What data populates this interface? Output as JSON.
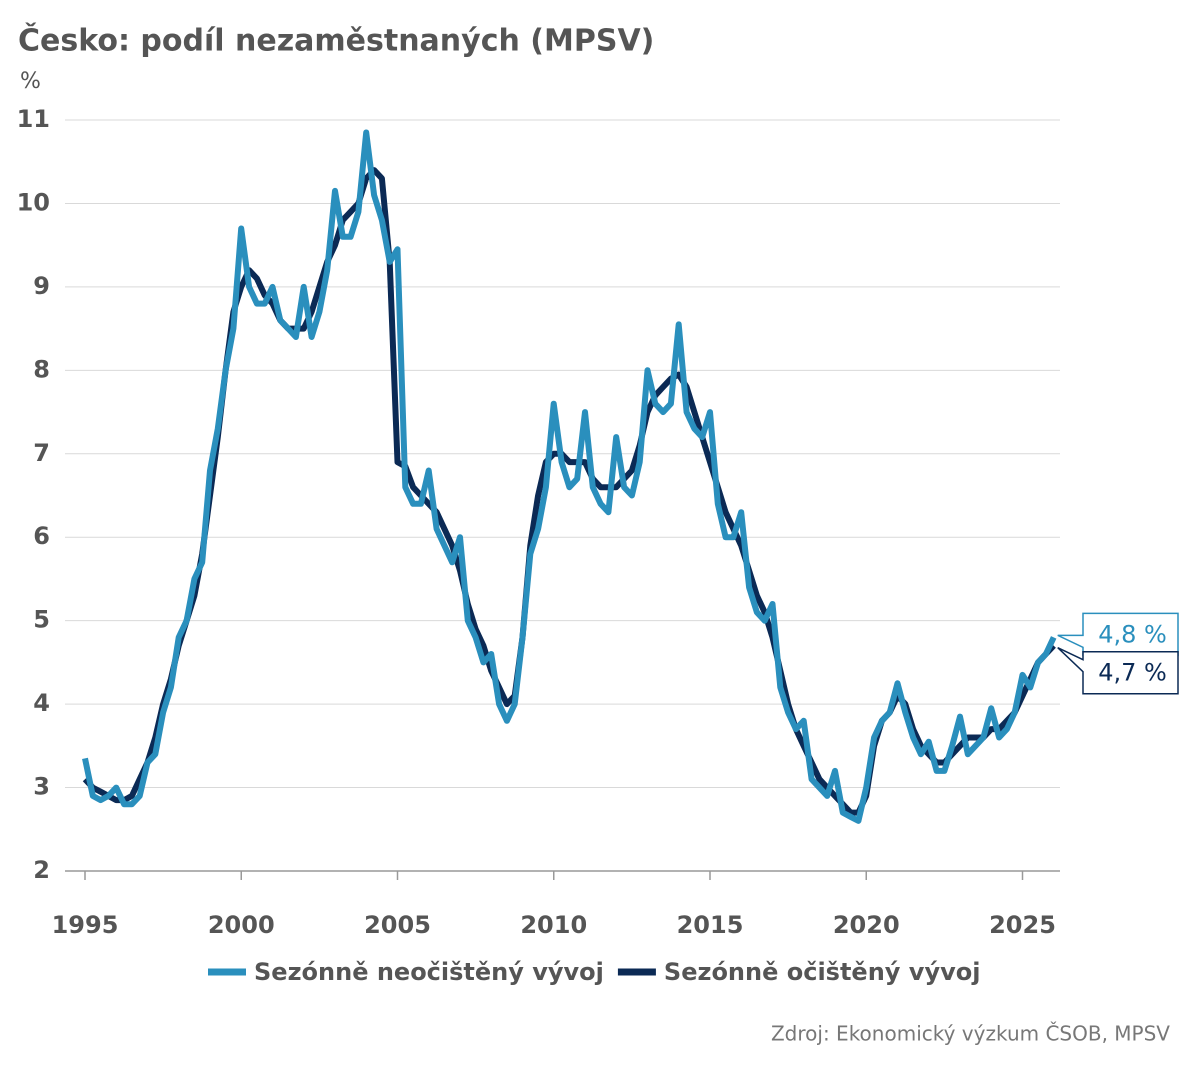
{
  "chart_data": {
    "type": "line",
    "title": "Česko: podíl nezaměstnaných (MPSV)",
    "y_label": "%",
    "source": "Zdroj: Ekonomický výzkum ČSOB, MPSV",
    "x": [
      1995,
      1995.25,
      1995.5,
      1995.75,
      1996,
      1996.25,
      1996.5,
      1996.75,
      1997,
      1997.25,
      1997.5,
      1997.75,
      1998,
      1998.25,
      1998.5,
      1998.75,
      1999,
      1999.25,
      1999.5,
      1999.75,
      2000,
      2000.25,
      2000.5,
      2000.75,
      2001,
      2001.25,
      2001.5,
      2001.75,
      2002,
      2002.25,
      2002.5,
      2002.75,
      2003,
      2003.25,
      2003.5,
      2003.75,
      2004,
      2004.25,
      2004.5,
      2004.75,
      2005,
      2005.25,
      2005.5,
      2005.75,
      2006,
      2006.25,
      2006.5,
      2006.75,
      2007,
      2007.25,
      2007.5,
      2007.75,
      2008,
      2008.25,
      2008.5,
      2008.75,
      2009,
      2009.25,
      2009.5,
      2009.75,
      2010,
      2010.25,
      2010.5,
      2010.75,
      2011,
      2011.25,
      2011.5,
      2011.75,
      2012,
      2012.25,
      2012.5,
      2012.75,
      2013,
      2013.25,
      2013.5,
      2013.75,
      2014,
      2014.25,
      2014.5,
      2014.75,
      2015,
      2015.25,
      2015.5,
      2015.75,
      2016,
      2016.25,
      2016.5,
      2016.75,
      2017,
      2017.25,
      2017.5,
      2017.75,
      2018,
      2018.25,
      2018.5,
      2018.75,
      2019,
      2019.25,
      2019.5,
      2019.75,
      2020,
      2020.25,
      2020.5,
      2020.75,
      2021,
      2021.25,
      2021.5,
      2021.75,
      2022,
      2022.25,
      2022.5,
      2022.75,
      2023,
      2023.25,
      2023.5,
      2023.75,
      2024,
      2024.25,
      2024.5,
      2024.75,
      2025,
      2025.25,
      2025.5,
      2025.75,
      2026
    ],
    "series": [
      {
        "name": "Sezónně neočištěný vývoj",
        "color": "#2a8fbd",
        "values": [
          3.35,
          2.9,
          2.85,
          2.9,
          3.0,
          2.8,
          2.8,
          2.9,
          3.3,
          3.4,
          3.9,
          4.2,
          4.8,
          5.0,
          5.5,
          5.7,
          6.8,
          7.3,
          8.0,
          8.5,
          9.7,
          9.0,
          8.8,
          8.8,
          9.0,
          8.6,
          8.5,
          8.4,
          9.0,
          8.4,
          8.7,
          9.2,
          10.15,
          9.6,
          9.6,
          9.9,
          10.85,
          10.1,
          9.8,
          9.3,
          9.45,
          6.6,
          6.4,
          6.4,
          6.8,
          6.1,
          5.9,
          5.7,
          6.0,
          5.0,
          4.8,
          4.5,
          4.6,
          4.0,
          3.8,
          4.0,
          4.8,
          5.8,
          6.1,
          6.6,
          7.6,
          6.9,
          6.6,
          6.7,
          7.5,
          6.6,
          6.4,
          6.3,
          7.2,
          6.6,
          6.5,
          6.9,
          8.0,
          7.6,
          7.5,
          7.6,
          8.55,
          7.5,
          7.3,
          7.2,
          7.5,
          6.4,
          6.0,
          6.0,
          6.3,
          5.4,
          5.1,
          5.0,
          5.2,
          4.2,
          3.9,
          3.7,
          3.8,
          3.1,
          3.0,
          2.9,
          3.2,
          2.7,
          2.65,
          2.6,
          3.0,
          3.6,
          3.8,
          3.9,
          4.25,
          3.9,
          3.6,
          3.4,
          3.55,
          3.2,
          3.2,
          3.5,
          3.85,
          3.4,
          3.5,
          3.6,
          3.95,
          3.6,
          3.7,
          3.9,
          4.35,
          4.2,
          4.5,
          4.6,
          4.8
        ]
      },
      {
        "name": "Sezónně očištěný vývoj",
        "color": "#0b2a55",
        "values": [
          3.1,
          3.0,
          2.95,
          2.9,
          2.85,
          2.85,
          2.9,
          3.1,
          3.3,
          3.6,
          4.0,
          4.3,
          4.7,
          5.0,
          5.3,
          5.8,
          6.5,
          7.2,
          8.0,
          8.7,
          9.0,
          9.2,
          9.1,
          8.9,
          8.8,
          8.6,
          8.5,
          8.5,
          8.5,
          8.7,
          9.0,
          9.3,
          9.5,
          9.8,
          9.9,
          10.0,
          10.3,
          10.4,
          10.3,
          9.3,
          6.9,
          6.85,
          6.6,
          6.5,
          6.4,
          6.3,
          6.1,
          5.9,
          5.6,
          5.2,
          4.9,
          4.7,
          4.4,
          4.2,
          4.0,
          4.1,
          4.8,
          5.9,
          6.5,
          6.9,
          7.0,
          7.0,
          6.9,
          6.9,
          6.9,
          6.7,
          6.6,
          6.6,
          6.6,
          6.7,
          6.8,
          7.1,
          7.5,
          7.7,
          7.8,
          7.9,
          7.95,
          7.8,
          7.5,
          7.2,
          6.9,
          6.6,
          6.3,
          6.1,
          5.9,
          5.6,
          5.3,
          5.1,
          4.8,
          4.4,
          4.0,
          3.7,
          3.5,
          3.3,
          3.1,
          3.0,
          2.9,
          2.8,
          2.7,
          2.7,
          2.9,
          3.5,
          3.8,
          3.9,
          4.1,
          4.0,
          3.7,
          3.5,
          3.4,
          3.3,
          3.3,
          3.4,
          3.5,
          3.6,
          3.6,
          3.6,
          3.7,
          3.7,
          3.8,
          3.9,
          4.1,
          4.3,
          4.5,
          4.6,
          4.7
        ]
      }
    ],
    "annotations": [
      {
        "text": "4,8 %"
      },
      {
        "text": "4,7 %"
      }
    ],
    "xlim": [
      1995,
      2026.2
    ],
    "xticks": [
      1995,
      2000,
      2005,
      2010,
      2015,
      2020,
      2025
    ],
    "ylim": [
      2,
      11
    ],
    "yticks": [
      2,
      3,
      4,
      5,
      6,
      7,
      8,
      9,
      10,
      11
    ],
    "grid": true,
    "legend": "bottom"
  }
}
